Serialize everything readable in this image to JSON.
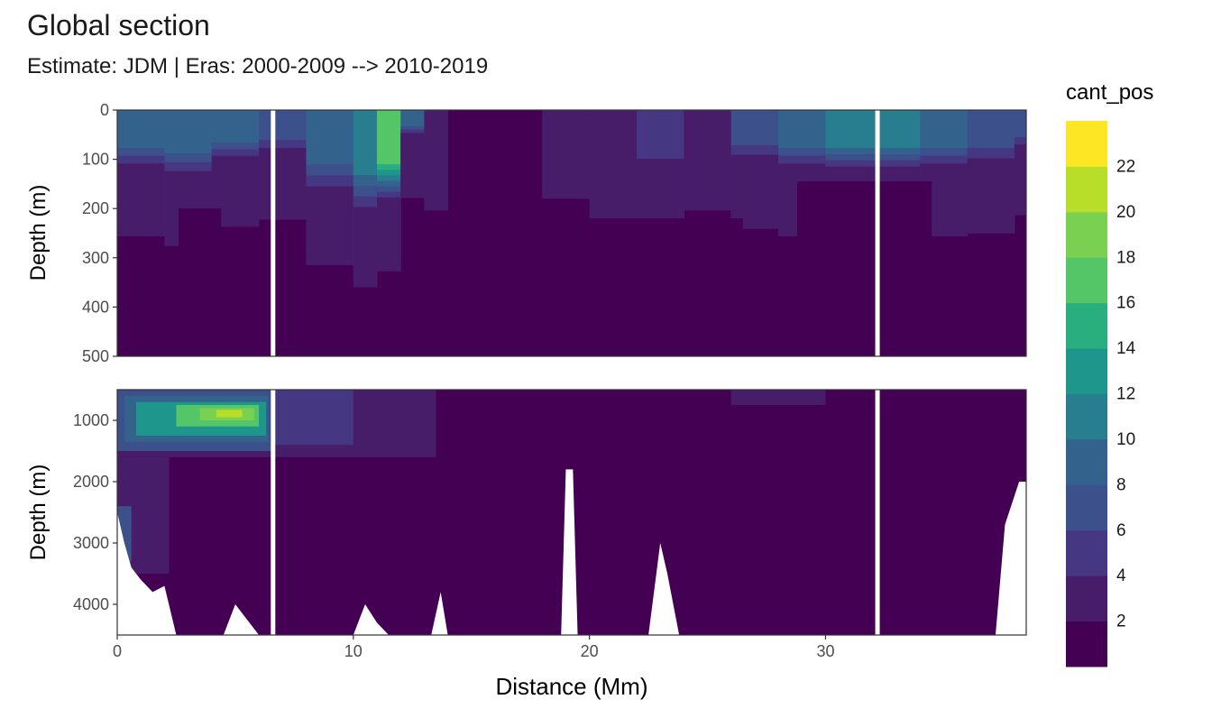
{
  "chart_data": {
    "type": "heatmap",
    "title": "Global section",
    "subtitle": "Estimate: JDM  | Eras: 2000-2009 --> 2010-2019",
    "xlabel": "Distance (Mm)",
    "xlim": [
      0,
      38.5
    ],
    "xticks": [
      0,
      10,
      20,
      30
    ],
    "panels": [
      {
        "ylabel": "Depth (m)",
        "ylim": [
          0,
          500
        ],
        "yticks": [
          0,
          100,
          200,
          300,
          400,
          500
        ]
      },
      {
        "ylabel": "Depth (m)",
        "ylim": [
          500,
          4500
        ],
        "yticks": [
          1000,
          2000,
          3000,
          4000
        ]
      }
    ],
    "legend": {
      "title": "cant_pos",
      "placement": "right",
      "breaks": [
        0,
        2,
        4,
        6,
        8,
        10,
        12,
        14,
        16,
        18,
        20,
        22,
        24
      ],
      "labels": [
        "2",
        "4",
        "6",
        "8",
        "10",
        "12",
        "14",
        "16",
        "18",
        "20",
        "22"
      ],
      "colors": [
        "#440154",
        "#471d6a",
        "#453781",
        "#3c508b",
        "#33638d",
        "#287d8e",
        "#1f968b",
        "#29af7f",
        "#55c667",
        "#7ad151",
        "#b8de29",
        "#fde725"
      ]
    },
    "data_gaps_Mm": [
      6.6,
      32.2
    ],
    "surface_panel": {
      "x": [
        0,
        2,
        4,
        6,
        8,
        10,
        11,
        12,
        13,
        14,
        16,
        18,
        20,
        22,
        24,
        26,
        28,
        30,
        32,
        34,
        36,
        38
      ],
      "mixed_layer_value": [
        8,
        9,
        9,
        7,
        8,
        10,
        17,
        9,
        2,
        1,
        1,
        3,
        3,
        4,
        3,
        6,
        9,
        10,
        10,
        8,
        7,
        6
      ],
      "mixed_layer_depth": [
        140,
        160,
        120,
        110,
        200,
        240,
        200,
        60,
        140,
        80,
        60,
        100,
        200,
        180,
        140,
        130,
        140,
        140,
        140,
        140,
        140,
        100
      ]
    },
    "deep_panel": {
      "intermediate_max": {
        "x": 5,
        "depth": 900,
        "value": 21
      },
      "interior_value": 1
    },
    "bottom_topography": {
      "x": [
        0,
        0.3,
        0.6,
        1.0,
        1.5,
        2.0,
        2.5,
        4.5,
        5.0,
        6.0,
        6.6,
        10.0,
        10.5,
        11.0,
        11.5,
        13.3,
        13.7,
        14.0,
        18.8,
        19.0,
        19.3,
        19.5,
        22.5,
        23.0,
        23.3,
        23.8,
        37.2,
        37.6,
        38.2,
        38.5
      ],
      "depth": [
        2500,
        3000,
        3400,
        3600,
        3800,
        3700,
        4500,
        4500,
        4000,
        4500,
        4500,
        4500,
        4000,
        4300,
        4500,
        4500,
        3800,
        4500,
        4500,
        1800,
        1800,
        4500,
        4500,
        3000,
        3500,
        4500,
        4500,
        2700,
        2000,
        2000
      ]
    }
  }
}
